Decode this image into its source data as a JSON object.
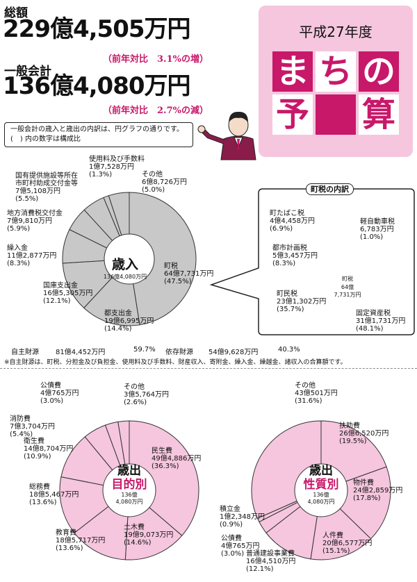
{
  "header": {
    "total_label": "総額",
    "total_amount": "229億4,505万円",
    "total_change": "（前年対比　3.1%の増）",
    "general_label": "一般会計",
    "general_amount": "136億4,080万円",
    "general_change": "（前年対比　2.7%の減）"
  },
  "title_box": {
    "subtitle": "平成27年度",
    "chars": [
      "ま",
      "ち",
      "の",
      "予",
      "算"
    ]
  },
  "note": {
    "line1": "一般会計の歳入と歳出の内訳は、円グラフの通りです。",
    "line2": "(　) 内の数字は構成比"
  },
  "colors": {
    "accent": "#c8186a",
    "pink": "#f5c6de",
    "gray_light": "#c8c8c8",
    "gray_dark": "#8c8c8c"
  },
  "revenue_summary": {
    "own_label": "自主財源",
    "own_amount": "81億4,452万円",
    "own_pct": "59.7%",
    "dep_label": "依存財源",
    "dep_amount": "54億9,628万円",
    "dep_pct": "40.3%",
    "footnote": "※自主財源は、町税、分担金及び負担金、使用料及び手数料、財産収入、寄附金、繰入金、繰越金、諸収入の合算額です。"
  },
  "chart_data": [
    {
      "type": "pie",
      "center_title": "歳入",
      "center_sub": "136億4,080万円",
      "slices": [
        {
          "name": "町税",
          "amount": "64億7,731万円",
          "pct": "(47.5%)",
          "value": 47.5
        },
        {
          "name": "都支出金",
          "amount": "19億6,995万円",
          "pct": "(14.4%)",
          "value": 14.4
        },
        {
          "name": "国庫支出金",
          "amount": "16億5,305万円",
          "pct": "(12.1%)",
          "value": 12.1
        },
        {
          "name": "繰入金",
          "amount": "11億2,877万円",
          "pct": "(8.3%)",
          "value": 8.3
        },
        {
          "name": "地方消費税交付金",
          "amount": "7億9,810万円",
          "pct": "(5.9%)",
          "value": 5.9
        },
        {
          "name": "国有提供施設等所在\n市町村助成交付金等",
          "amount": "7億5,108万円",
          "pct": "(5.5%)",
          "value": 5.5
        },
        {
          "name": "使用料及び手数料",
          "amount": "1億7,528万円",
          "pct": "(1.3%)",
          "value": 1.3
        },
        {
          "name": "その他",
          "amount": "6億8,726万円",
          "pct": "(5.0%)",
          "value": 5.0
        }
      ]
    },
    {
      "type": "pie",
      "title": "町税の内訳",
      "center_title": "町税",
      "center_sub1": "64億",
      "center_sub2": "7,731万円",
      "slices": [
        {
          "name": "軽自動車税",
          "amount": "6,783万円",
          "pct": "(1.0%)",
          "value": 1.0
        },
        {
          "name": "固定資産税",
          "amount": "31億1,731万円",
          "pct": "(48.1%)",
          "value": 48.1
        },
        {
          "name": "町民税",
          "amount": "23億1,302万円",
          "pct": "(35.7%)",
          "value": 35.7
        },
        {
          "name": "都市計画税",
          "amount": "5億3,457万円",
          "pct": "(8.3%)",
          "value": 8.3
        },
        {
          "name": "町たばこ税",
          "amount": "4億4,458万円",
          "pct": "(6.9%)",
          "value": 6.9
        }
      ]
    },
    {
      "type": "pie",
      "center_title": "歳出",
      "center_tag": "目的別",
      "center_sub1": "136億",
      "center_sub2": "4,080万円",
      "slices": [
        {
          "name": "民生費",
          "amount": "49億4,886万円",
          "pct": "(36.3%)",
          "value": 36.3
        },
        {
          "name": "土木費",
          "amount": "19億9,073万円",
          "pct": "(14.6%)",
          "value": 14.6
        },
        {
          "name": "教育費",
          "amount": "18億5,717万円",
          "pct": "(13.6%)",
          "value": 13.6
        },
        {
          "name": "総務費",
          "amount": "18億5,467万円",
          "pct": "(13.6%)",
          "value": 13.6
        },
        {
          "name": "衛生費",
          "amount": "14億8,704万円",
          "pct": "(10.9%)",
          "value": 10.9
        },
        {
          "name": "消防費",
          "amount": "7億3,704万円",
          "pct": "(5.4%)",
          "value": 5.4
        },
        {
          "name": "公債費",
          "amount": "4億765万円",
          "pct": "(3.0%)",
          "value": 3.0
        },
        {
          "name": "その他",
          "amount": "3億5,764万円",
          "pct": "(2.6%)",
          "value": 2.6
        }
      ]
    },
    {
      "type": "pie",
      "center_title": "歳出",
      "center_tag": "性質別",
      "center_sub1": "136億",
      "center_sub2": "4,080万円",
      "slices": [
        {
          "name": "扶助費",
          "amount": "26億6,520万円",
          "pct": "(19.5%)",
          "value": 19.5
        },
        {
          "name": "物件費",
          "amount": "24億2,859万円",
          "pct": "(17.8%)",
          "value": 17.8
        },
        {
          "name": "人件費",
          "amount": "20億6,577万円",
          "pct": "(15.1%)",
          "value": 15.1
        },
        {
          "name": "普通建設事業費",
          "amount": "16億4,510万円",
          "pct": "(12.1%)",
          "value": 12.1
        },
        {
          "name": "公債費",
          "amount": "4億765万円",
          "pct": "(3.0%)",
          "value": 3.0
        },
        {
          "name": "積立金",
          "amount": "1億2,348万円",
          "pct": "(0.9%)",
          "value": 0.9
        },
        {
          "name": "その他",
          "amount": "43億501万円",
          "pct": "(31.6%)",
          "value": 31.6
        }
      ]
    }
  ]
}
